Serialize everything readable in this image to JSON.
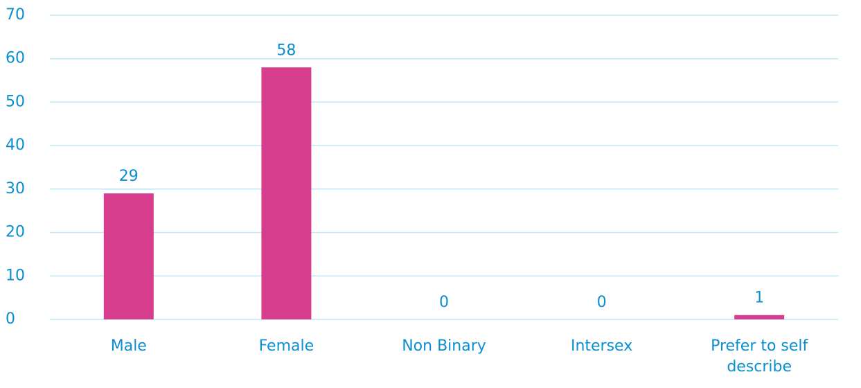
{
  "chart_data": {
    "type": "bar",
    "categories": [
      "Male",
      "Female",
      "Non Binary",
      "Intersex",
      "Prefer to self describe"
    ],
    "values": [
      29,
      58,
      0,
      0,
      1
    ],
    "color": "#d63d8c",
    "ylim": [
      0,
      70
    ],
    "yticks": [
      0,
      10,
      20,
      30,
      40,
      50,
      60,
      70
    ],
    "grid": true
  }
}
